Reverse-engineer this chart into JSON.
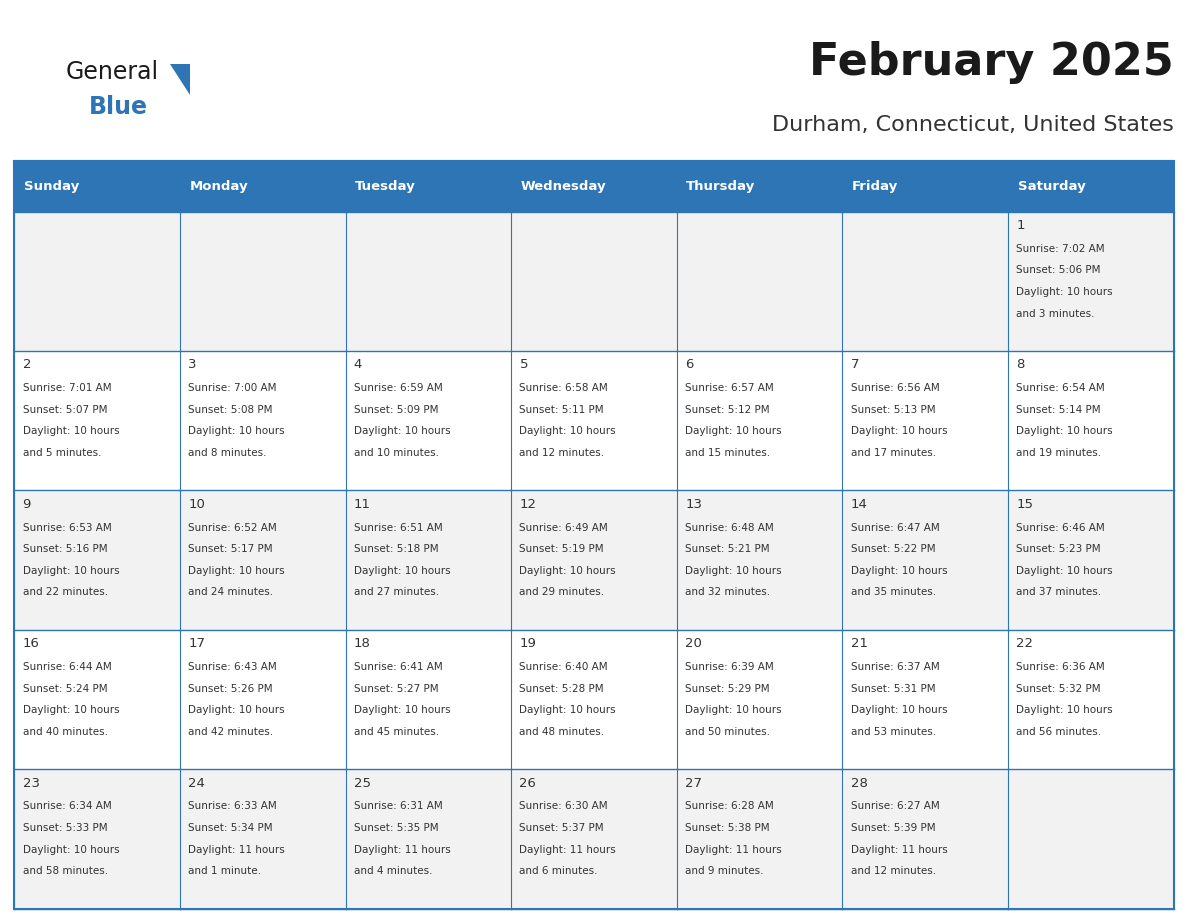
{
  "title": "February 2025",
  "subtitle": "Durham, Connecticut, United States",
  "header_color": "#2e75b6",
  "header_text_color": "#ffffff",
  "cell_bg_even": "#f2f2f2",
  "cell_bg_odd": "#ffffff",
  "border_color": "#2e75b6",
  "day_number_color": "#333333",
  "info_text_color": "#333333",
  "days_of_week": [
    "Sunday",
    "Monday",
    "Tuesday",
    "Wednesday",
    "Thursday",
    "Friday",
    "Saturday"
  ],
  "logo_general_color": "#1a1a1a",
  "logo_blue_color": "#2e75b6",
  "calendar_data": [
    [
      null,
      null,
      null,
      null,
      null,
      null,
      {
        "day": 1,
        "sunrise": "7:02 AM",
        "sunset": "5:06 PM",
        "daylight_line1": "Daylight: 10 hours",
        "daylight_line2": "and 3 minutes."
      }
    ],
    [
      {
        "day": 2,
        "sunrise": "7:01 AM",
        "sunset": "5:07 PM",
        "daylight_line1": "Daylight: 10 hours",
        "daylight_line2": "and 5 minutes."
      },
      {
        "day": 3,
        "sunrise": "7:00 AM",
        "sunset": "5:08 PM",
        "daylight_line1": "Daylight: 10 hours",
        "daylight_line2": "and 8 minutes."
      },
      {
        "day": 4,
        "sunrise": "6:59 AM",
        "sunset": "5:09 PM",
        "daylight_line1": "Daylight: 10 hours",
        "daylight_line2": "and 10 minutes."
      },
      {
        "day": 5,
        "sunrise": "6:58 AM",
        "sunset": "5:11 PM",
        "daylight_line1": "Daylight: 10 hours",
        "daylight_line2": "and 12 minutes."
      },
      {
        "day": 6,
        "sunrise": "6:57 AM",
        "sunset": "5:12 PM",
        "daylight_line1": "Daylight: 10 hours",
        "daylight_line2": "and 15 minutes."
      },
      {
        "day": 7,
        "sunrise": "6:56 AM",
        "sunset": "5:13 PM",
        "daylight_line1": "Daylight: 10 hours",
        "daylight_line2": "and 17 minutes."
      },
      {
        "day": 8,
        "sunrise": "6:54 AM",
        "sunset": "5:14 PM",
        "daylight_line1": "Daylight: 10 hours",
        "daylight_line2": "and 19 minutes."
      }
    ],
    [
      {
        "day": 9,
        "sunrise": "6:53 AM",
        "sunset": "5:16 PM",
        "daylight_line1": "Daylight: 10 hours",
        "daylight_line2": "and 22 minutes."
      },
      {
        "day": 10,
        "sunrise": "6:52 AM",
        "sunset": "5:17 PM",
        "daylight_line1": "Daylight: 10 hours",
        "daylight_line2": "and 24 minutes."
      },
      {
        "day": 11,
        "sunrise": "6:51 AM",
        "sunset": "5:18 PM",
        "daylight_line1": "Daylight: 10 hours",
        "daylight_line2": "and 27 minutes."
      },
      {
        "day": 12,
        "sunrise": "6:49 AM",
        "sunset": "5:19 PM",
        "daylight_line1": "Daylight: 10 hours",
        "daylight_line2": "and 29 minutes."
      },
      {
        "day": 13,
        "sunrise": "6:48 AM",
        "sunset": "5:21 PM",
        "daylight_line1": "Daylight: 10 hours",
        "daylight_line2": "and 32 minutes."
      },
      {
        "day": 14,
        "sunrise": "6:47 AM",
        "sunset": "5:22 PM",
        "daylight_line1": "Daylight: 10 hours",
        "daylight_line2": "and 35 minutes."
      },
      {
        "day": 15,
        "sunrise": "6:46 AM",
        "sunset": "5:23 PM",
        "daylight_line1": "Daylight: 10 hours",
        "daylight_line2": "and 37 minutes."
      }
    ],
    [
      {
        "day": 16,
        "sunrise": "6:44 AM",
        "sunset": "5:24 PM",
        "daylight_line1": "Daylight: 10 hours",
        "daylight_line2": "and 40 minutes."
      },
      {
        "day": 17,
        "sunrise": "6:43 AM",
        "sunset": "5:26 PM",
        "daylight_line1": "Daylight: 10 hours",
        "daylight_line2": "and 42 minutes."
      },
      {
        "day": 18,
        "sunrise": "6:41 AM",
        "sunset": "5:27 PM",
        "daylight_line1": "Daylight: 10 hours",
        "daylight_line2": "and 45 minutes."
      },
      {
        "day": 19,
        "sunrise": "6:40 AM",
        "sunset": "5:28 PM",
        "daylight_line1": "Daylight: 10 hours",
        "daylight_line2": "and 48 minutes."
      },
      {
        "day": 20,
        "sunrise": "6:39 AM",
        "sunset": "5:29 PM",
        "daylight_line1": "Daylight: 10 hours",
        "daylight_line2": "and 50 minutes."
      },
      {
        "day": 21,
        "sunrise": "6:37 AM",
        "sunset": "5:31 PM",
        "daylight_line1": "Daylight: 10 hours",
        "daylight_line2": "and 53 minutes."
      },
      {
        "day": 22,
        "sunrise": "6:36 AM",
        "sunset": "5:32 PM",
        "daylight_line1": "Daylight: 10 hours",
        "daylight_line2": "and 56 minutes."
      }
    ],
    [
      {
        "day": 23,
        "sunrise": "6:34 AM",
        "sunset": "5:33 PM",
        "daylight_line1": "Daylight: 10 hours",
        "daylight_line2": "and 58 minutes."
      },
      {
        "day": 24,
        "sunrise": "6:33 AM",
        "sunset": "5:34 PM",
        "daylight_line1": "Daylight: 11 hours",
        "daylight_line2": "and 1 minute."
      },
      {
        "day": 25,
        "sunrise": "6:31 AM",
        "sunset": "5:35 PM",
        "daylight_line1": "Daylight: 11 hours",
        "daylight_line2": "and 4 minutes."
      },
      {
        "day": 26,
        "sunrise": "6:30 AM",
        "sunset": "5:37 PM",
        "daylight_line1": "Daylight: 11 hours",
        "daylight_line2": "and 6 minutes."
      },
      {
        "day": 27,
        "sunrise": "6:28 AM",
        "sunset": "5:38 PM",
        "daylight_line1": "Daylight: 11 hours",
        "daylight_line2": "and 9 minutes."
      },
      {
        "day": 28,
        "sunrise": "6:27 AM",
        "sunset": "5:39 PM",
        "daylight_line1": "Daylight: 11 hours",
        "daylight_line2": "and 12 minutes."
      },
      null
    ]
  ]
}
